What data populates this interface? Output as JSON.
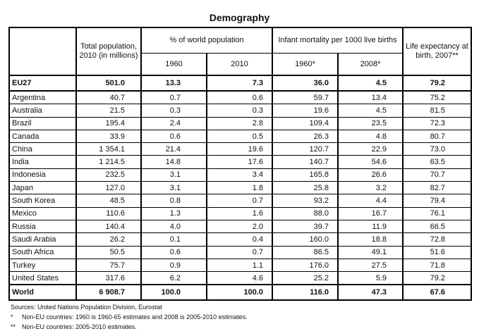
{
  "title": "Demography",
  "headers": {
    "total": "Total population, 2010 (in millions)",
    "pct": "% of world population",
    "pct_1960": "1960",
    "pct_2010": "2010",
    "infant": "Infant mortality per 1000 live births",
    "inf_1960": "1960*",
    "inf_2008": "2008*",
    "life": "Life expectancy at birth, 2007**"
  },
  "rows": [
    [
      "EU27",
      "501.0",
      "13.3",
      "7.3",
      "36.0",
      "4.5",
      "79.2"
    ],
    [
      "Argentina",
      "40.7",
      "0.7",
      "0.6",
      "59.7",
      "13.4",
      "75.2"
    ],
    [
      "Australia",
      "21.5",
      "0.3",
      "0.3",
      "19.6",
      "4.5",
      "81.5"
    ],
    [
      "Brazil",
      "195.4",
      "2.4",
      "2.8",
      "109.4",
      "23.5",
      "72.3"
    ],
    [
      "Canada",
      "33.9",
      "0.6",
      "0.5",
      "26.3",
      "4.8",
      "80.7"
    ],
    [
      "China",
      "1 354.1",
      "21.4",
      "19.6",
      "120.7",
      "22.9",
      "73.0"
    ],
    [
      "India",
      "1 214.5",
      "14.8",
      "17.6",
      "140.7",
      "54.6",
      "63.5"
    ],
    [
      "Indonesia",
      "232.5",
      "3.1",
      "3.4",
      "165.8",
      "26.6",
      "70.7"
    ],
    [
      "Japan",
      "127.0",
      "3.1",
      "1.8",
      "25.8",
      "3.2",
      "82.7"
    ],
    [
      "South Korea",
      "48.5",
      "0.8",
      "0.7",
      "93.2",
      "4.4",
      "79.4"
    ],
    [
      "Mexico",
      "110.6",
      "1.3",
      "1.6",
      "88.0",
      "16.7",
      "76.1"
    ],
    [
      "Russia",
      "140.4",
      "4.0",
      "2.0",
      "39.7",
      "11.9",
      "66.5"
    ],
    [
      "Saudi Arabia",
      "26.2",
      "0.1",
      "0.4",
      "160.0",
      "18.8",
      "72.8"
    ],
    [
      "South Africa",
      "50.5",
      "0.6",
      "0.7",
      "86.5",
      "49.1",
      "51.6"
    ],
    [
      "Turkey",
      "75.7",
      "0.9",
      "1.1",
      "176.0",
      "27.5",
      "71.8"
    ],
    [
      "United States",
      "317.6",
      "6.2",
      "4.6",
      "25.2",
      "5.9",
      "79.2"
    ],
    [
      "World",
      "6 908.7",
      "100.0",
      "100.0",
      "116.0",
      "47.3",
      "67.6"
    ]
  ],
  "footer": {
    "sources": "Sources: United Nations Population Division, Eurostat",
    "note1_mark": "*",
    "note1": "Non-EU countries: 1960 is 1960-65 estimates and 2008 is 2005-2010 estimates.",
    "note2_mark": "**",
    "note2": "Non-EU countries: 2005-2010 estimates."
  }
}
